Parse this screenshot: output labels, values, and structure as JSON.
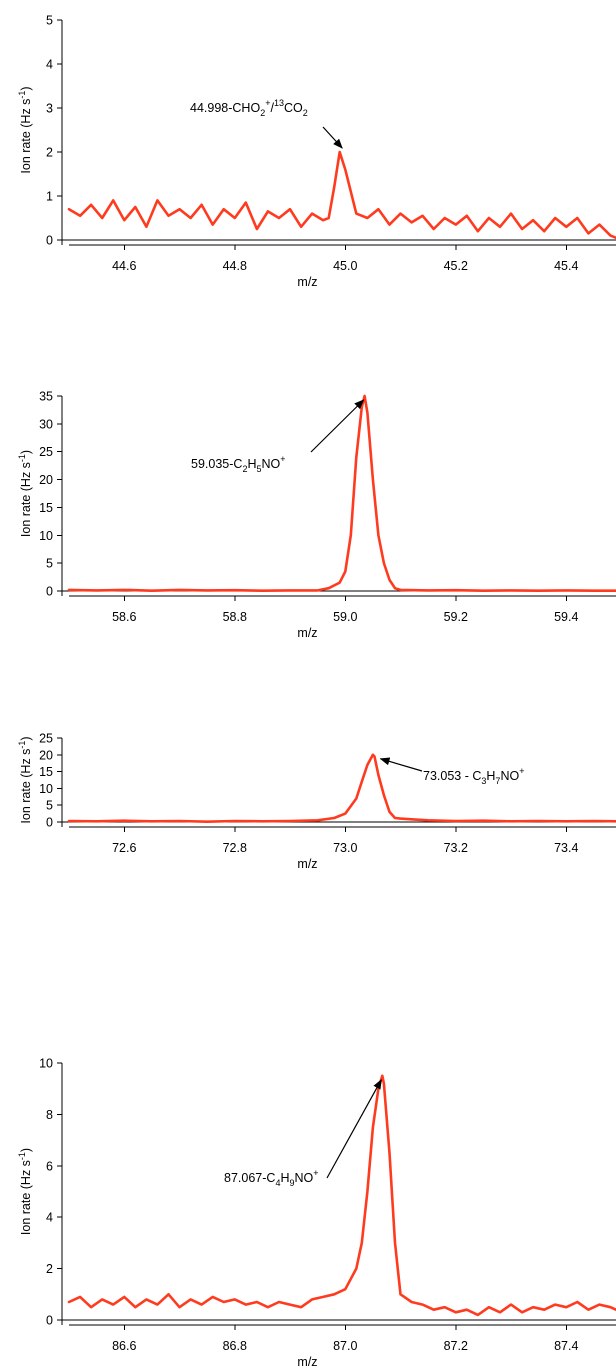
{
  "colors": {
    "series": "#FF3B1F",
    "axis": "#000000"
  },
  "chart_data": [
    {
      "type": "line",
      "xlabel": "m/z",
      "ylabel": "Ion rate (Hz s",
      "ylabel_sup": "-1",
      "ylabel_end": ")",
      "xlim": [
        44.5,
        45.49
      ],
      "ylim": [
        0,
        5
      ],
      "xticks": [
        44.6,
        44.8,
        45.0,
        45.2,
        45.4
      ],
      "xtick_labels": [
        "44.6",
        "44.8",
        "45.0",
        "45.2",
        "45.4"
      ],
      "yticks": [
        0,
        1,
        2,
        3,
        4,
        5
      ],
      "ytick_labels": [
        "0",
        "1",
        "2",
        "3",
        "4",
        "5"
      ],
      "series": [
        {
          "x": [
            44.5,
            44.52,
            44.54,
            44.56,
            44.58,
            44.6,
            44.62,
            44.64,
            44.66,
            44.68,
            44.7,
            44.72,
            44.74,
            44.76,
            44.78,
            44.8,
            44.82,
            44.84,
            44.86,
            44.88,
            44.9,
            44.92,
            44.94,
            44.96,
            44.97,
            44.98,
            44.99,
            45.0,
            45.01,
            45.02,
            45.04,
            45.06,
            45.08,
            45.1,
            45.12,
            45.14,
            45.16,
            45.18,
            45.2,
            45.22,
            45.24,
            45.26,
            45.28,
            45.3,
            45.32,
            45.34,
            45.36,
            45.38,
            45.4,
            45.42,
            45.44,
            45.46,
            45.48,
            45.49
          ],
          "y": [
            0.7,
            0.55,
            0.8,
            0.5,
            0.9,
            0.45,
            0.75,
            0.3,
            0.9,
            0.55,
            0.7,
            0.5,
            0.8,
            0.35,
            0.7,
            0.5,
            0.85,
            0.25,
            0.65,
            0.5,
            0.7,
            0.3,
            0.6,
            0.45,
            0.5,
            1.2,
            2.0,
            1.6,
            1.1,
            0.6,
            0.5,
            0.7,
            0.35,
            0.6,
            0.4,
            0.55,
            0.25,
            0.5,
            0.35,
            0.55,
            0.2,
            0.5,
            0.3,
            0.6,
            0.25,
            0.45,
            0.2,
            0.5,
            0.3,
            0.5,
            0.15,
            0.35,
            0.1,
            0.05
          ]
        }
      ],
      "annotation": {
        "text": "44.998-CHO",
        "sub": "2",
        "sup": "+",
        "text2": "/",
        "sup2": "13",
        "text3": "CO",
        "sub2": "2",
        "x": 44.998,
        "y": 2.0
      }
    },
    {
      "type": "line",
      "xlabel": "m/z",
      "ylabel": "Ion rate (Hz s",
      "ylabel_sup": "-1",
      "ylabel_end": ")",
      "xlim": [
        58.5,
        59.49
      ],
      "ylim": [
        0,
        35
      ],
      "xticks": [
        58.6,
        58.8,
        59.0,
        59.2,
        59.4
      ],
      "xtick_labels": [
        "58.6",
        "58.8",
        "59.0",
        "59.2",
        "59.4"
      ],
      "yticks": [
        0,
        5,
        10,
        15,
        20,
        25,
        30,
        35
      ],
      "ytick_labels": [
        "0",
        "5",
        "10",
        "15",
        "20",
        "25",
        "30",
        "35"
      ],
      "series": [
        {
          "x": [
            58.5,
            58.55,
            58.6,
            58.65,
            58.7,
            58.75,
            58.8,
            58.85,
            58.9,
            58.95,
            58.97,
            58.99,
            59.0,
            59.01,
            59.02,
            59.03,
            59.035,
            59.04,
            59.05,
            59.06,
            59.07,
            59.08,
            59.09,
            59.1,
            59.15,
            59.2,
            59.25,
            59.3,
            59.35,
            59.4,
            59.45,
            59.49
          ],
          "y": [
            0.2,
            0.1,
            0.2,
            0.05,
            0.2,
            0.1,
            0.15,
            0.05,
            0.1,
            0.1,
            0.5,
            1.5,
            3.5,
            10,
            24,
            33,
            35,
            32,
            20,
            10,
            5,
            2,
            0.5,
            0.2,
            0.1,
            0.15,
            0.05,
            0.1,
            0.05,
            0.1,
            0.05,
            0.05
          ]
        }
      ],
      "annotation": {
        "text": "59.035-C",
        "sub": "2",
        "text2": "H",
        "sub2": "5",
        "text3": "NO",
        "sup": "+",
        "x": 59.035,
        "y": 35
      }
    },
    {
      "type": "line",
      "xlabel": "m/z",
      "ylabel": "Ion rate (Hz s",
      "ylabel_sup": "-1",
      "ylabel_end": ")",
      "xlim": [
        72.5,
        73.49
      ],
      "ylim": [
        0,
        25
      ],
      "xticks": [
        72.6,
        72.8,
        73.0,
        73.2,
        73.4
      ],
      "xtick_labels": [
        "72.6",
        "72.8",
        "73.0",
        "73.2",
        "73.4"
      ],
      "yticks": [
        0,
        5,
        10,
        15,
        20,
        25
      ],
      "ytick_labels": [
        "0",
        "5",
        "10",
        "15",
        "20",
        "25"
      ],
      "series": [
        {
          "x": [
            72.5,
            72.55,
            72.6,
            72.65,
            72.7,
            72.75,
            72.8,
            72.85,
            72.9,
            72.95,
            72.98,
            73.0,
            73.02,
            73.03,
            73.04,
            73.05,
            73.053,
            73.06,
            73.07,
            73.08,
            73.09,
            73.1,
            73.12,
            73.15,
            73.2,
            73.25,
            73.3,
            73.35,
            73.4,
            73.45,
            73.49
          ],
          "y": [
            0.3,
            0.2,
            0.4,
            0.2,
            0.3,
            0.1,
            0.3,
            0.2,
            0.3,
            0.5,
            1.2,
            2.5,
            7,
            12,
            17,
            20,
            19.5,
            14,
            8,
            3,
            1.2,
            1.0,
            0.8,
            0.5,
            0.3,
            0.4,
            0.2,
            0.3,
            0.2,
            0.3,
            0.2
          ]
        }
      ],
      "annotation": {
        "text": "73.053 - C",
        "sub": "3",
        "text2": "H",
        "sub2": "7",
        "text3": "NO",
        "sup": "+",
        "x": 73.053,
        "y": 20
      }
    },
    {
      "type": "line",
      "xlabel": "m/z",
      "ylabel": "Ion rate (Hz s",
      "ylabel_sup": "-1",
      "ylabel_end": ")",
      "xlim": [
        86.5,
        87.49
      ],
      "ylim": [
        0,
        10
      ],
      "xticks": [
        86.6,
        86.8,
        87.0,
        87.2,
        87.4
      ],
      "xtick_labels": [
        "86.6",
        "86.8",
        "87.0",
        "87.2",
        "87.4"
      ],
      "yticks": [
        0,
        2,
        4,
        6,
        8,
        10
      ],
      "ytick_labels": [
        "0",
        "2",
        "4",
        "6",
        "8",
        "10"
      ],
      "series": [
        {
          "x": [
            86.5,
            86.52,
            86.54,
            86.56,
            86.58,
            86.6,
            86.62,
            86.64,
            86.66,
            86.68,
            86.7,
            86.72,
            86.74,
            86.76,
            86.78,
            86.8,
            86.82,
            86.84,
            86.86,
            86.88,
            86.9,
            86.92,
            86.94,
            86.96,
            86.98,
            87.0,
            87.02,
            87.03,
            87.04,
            87.05,
            87.06,
            87.067,
            87.07,
            87.08,
            87.09,
            87.1,
            87.12,
            87.14,
            87.16,
            87.18,
            87.2,
            87.22,
            87.24,
            87.26,
            87.28,
            87.3,
            87.32,
            87.34,
            87.36,
            87.38,
            87.4,
            87.42,
            87.44,
            87.46,
            87.48,
            87.49
          ],
          "y": [
            0.7,
            0.9,
            0.5,
            0.8,
            0.6,
            0.9,
            0.5,
            0.8,
            0.6,
            1.0,
            0.5,
            0.8,
            0.6,
            0.9,
            0.7,
            0.8,
            0.6,
            0.7,
            0.5,
            0.7,
            0.6,
            0.5,
            0.8,
            0.9,
            1.0,
            1.2,
            2.0,
            3.0,
            5.0,
            7.5,
            9.0,
            9.5,
            9.2,
            6.5,
            3.0,
            1.0,
            0.7,
            0.6,
            0.4,
            0.5,
            0.3,
            0.4,
            0.2,
            0.5,
            0.3,
            0.6,
            0.3,
            0.5,
            0.4,
            0.6,
            0.5,
            0.7,
            0.4,
            0.6,
            0.5,
            0.4
          ]
        }
      ],
      "annotation": {
        "text": "87.067-C",
        "sub": "4",
        "text2": "H",
        "sub2": "9",
        "text3": "NO",
        "sup": "+",
        "x": 87.067,
        "y": 9.5
      }
    }
  ]
}
